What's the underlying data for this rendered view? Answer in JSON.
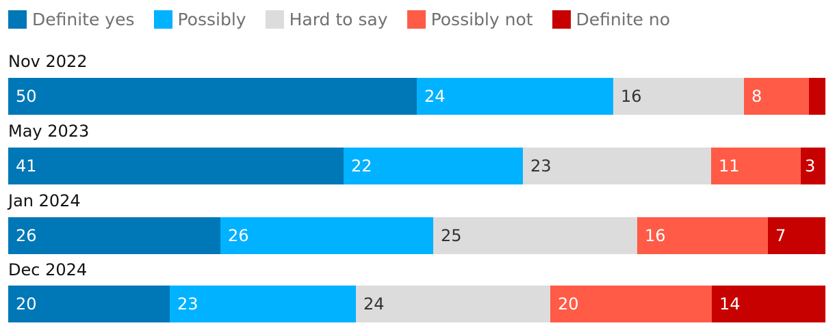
{
  "chart_data": {
    "type": "bar",
    "orientation": "horizontal",
    "stacked": true,
    "normalized": true,
    "title": "",
    "xlabel": "",
    "ylabel": "",
    "categories": [
      "Nov 2022",
      "May 2023",
      "Jan 2024",
      "Dec 2024"
    ],
    "series": [
      {
        "name": "Definite yes",
        "color": "#0077b6",
        "text_color": "#ffffff",
        "values": [
          50,
          41,
          26,
          20
        ]
      },
      {
        "name": "Possibly",
        "color": "#00b2ff",
        "text_color": "#ffffff",
        "values": [
          24,
          22,
          26,
          23
        ]
      },
      {
        "name": "Hard to say",
        "color": "#dcdcdc",
        "text_color": "#333333",
        "values": [
          16,
          23,
          25,
          24
        ]
      },
      {
        "name": "Possibly not",
        "color": "#ff5b47",
        "text_color": "#ffffff",
        "values": [
          8,
          11,
          16,
          20
        ]
      },
      {
        "name": "Definite no",
        "color": "#c70000",
        "text_color": "#ffffff",
        "values": [
          2,
          3,
          7,
          14
        ]
      }
    ],
    "data_labels": [
      [
        "50",
        "24",
        "16",
        "8",
        ""
      ],
      [
        "41",
        "22",
        "23",
        "11",
        "3"
      ],
      [
        "26",
        "26",
        "25",
        "16",
        "7"
      ],
      [
        "20",
        "23",
        "24",
        "20",
        "14"
      ]
    ],
    "legend_position": "top-left",
    "grid": false
  }
}
